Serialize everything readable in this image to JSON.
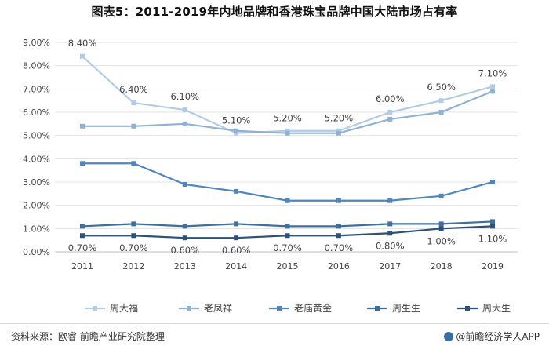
{
  "title": "图表5：2011-2019年内地品牌和香港珠宝品牌中国大陆市场占有率",
  "source": "资料来源：欧睿 前瞻产业研究院整理",
  "brand": "@前瞻经济学人APP",
  "chart_data": {
    "type": "line",
    "title": "图表5：2011-2019年内地品牌和香港珠宝品牌中国大陆市场占有率",
    "xlabel": "",
    "ylabel": "",
    "categories": [
      "2011",
      "2012",
      "2013",
      "2014",
      "2015",
      "2016",
      "2017",
      "2018",
      "2019"
    ],
    "ylim": [
      0,
      9
    ],
    "yticks": [
      "0.00%",
      "1.00%",
      "2.00%",
      "3.00%",
      "4.00%",
      "5.00%",
      "6.00%",
      "7.00%",
      "8.00%",
      "9.00%"
    ],
    "grid": "horizontal",
    "legend_position": "bottom",
    "series": [
      {
        "name": "周大福",
        "color": "#b3cce6",
        "values": [
          8.4,
          6.4,
          6.1,
          5.1,
          5.2,
          5.2,
          6.0,
          6.5,
          7.1
        ],
        "labels": [
          "8.40%",
          "6.40%",
          "6.10%",
          "5.10%",
          "5.20%",
          "5.20%",
          "6.00%",
          "6.50%",
          "7.10%"
        ]
      },
      {
        "name": "老凤祥",
        "color": "#8fb1d6",
        "values": [
          5.4,
          5.4,
          5.5,
          5.2,
          5.1,
          5.1,
          5.7,
          6.0,
          6.9
        ]
      },
      {
        "name": "老庙黄金",
        "color": "#4f86c0",
        "values": [
          3.8,
          3.8,
          2.9,
          2.6,
          2.2,
          2.2,
          2.2,
          2.4,
          3.0
        ]
      },
      {
        "name": "周生生",
        "color": "#3f6f9f",
        "values": [
          1.1,
          1.2,
          1.1,
          1.2,
          1.1,
          1.1,
          1.2,
          1.2,
          1.3
        ]
      },
      {
        "name": "周大生",
        "color": "#2d5279",
        "values": [
          0.7,
          0.7,
          0.6,
          0.6,
          0.7,
          0.7,
          0.8,
          1.0,
          1.1
        ],
        "labels": [
          "0.70%",
          "0.70%",
          "0.60%",
          "0.60%",
          "0.70%",
          "0.70%",
          "0.80%",
          "1.00%",
          "1.10%"
        ]
      }
    ]
  }
}
